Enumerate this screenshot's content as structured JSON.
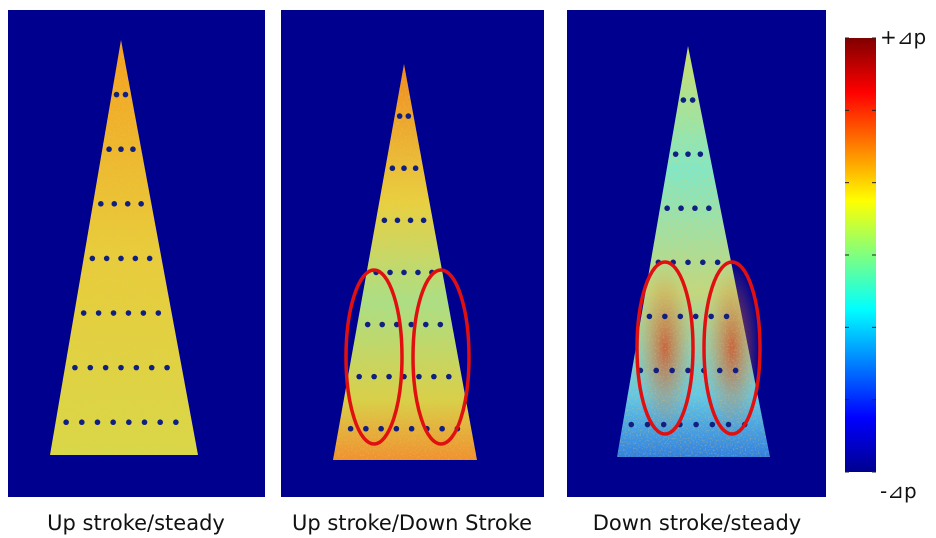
{
  "panels": [
    {
      "caption": "Up stroke/steady"
    },
    {
      "caption": "Up stroke/Down Stroke"
    },
    {
      "caption": "Down stroke/steady"
    }
  ],
  "colorbar": {
    "max_label": "+⊿p",
    "min_label": "-⊿p"
  }
}
